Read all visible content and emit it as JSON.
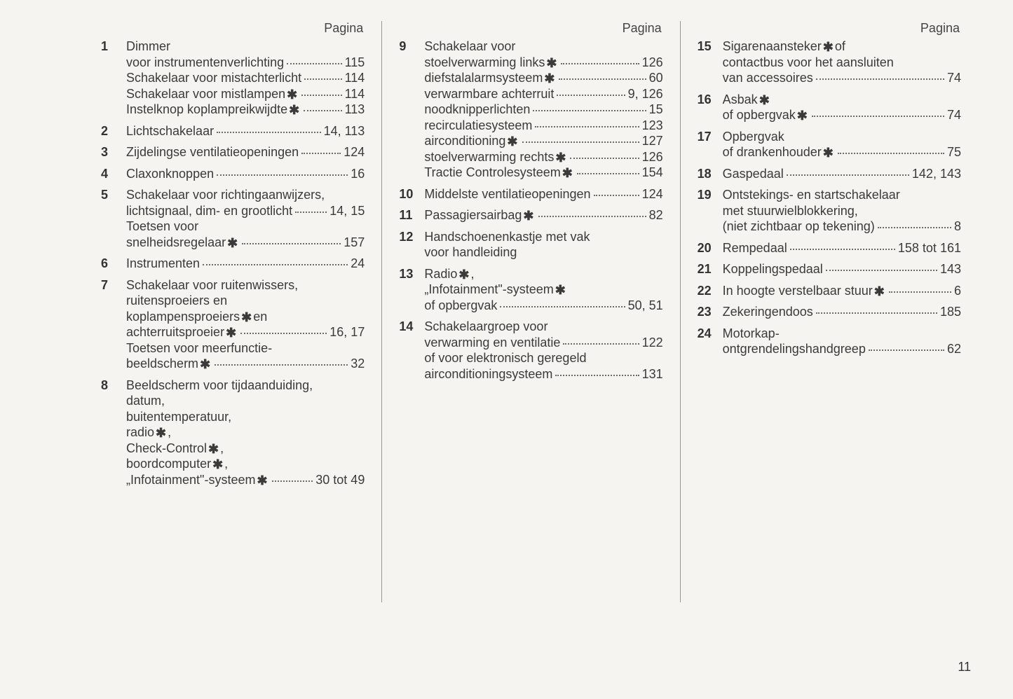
{
  "header_label": "Pagina",
  "page_number": "11",
  "columns": [
    {
      "entries": [
        {
          "num": "1",
          "lines": [
            {
              "text": "Dimmer"
            },
            {
              "text": "voor instrumentenverlichting",
              "page": "115"
            },
            {
              "text": "Schakelaar voor mistachterlicht",
              "page": "114"
            },
            {
              "text": "Schakelaar voor mistlampen",
              "star": true,
              "page": "114"
            },
            {
              "text": "Instelknop koplampreikwijdte",
              "star": true,
              "page": "113"
            }
          ]
        },
        {
          "num": "2",
          "lines": [
            {
              "text": "Lichtschakelaar",
              "page": "14, 113"
            }
          ]
        },
        {
          "num": "3",
          "lines": [
            {
              "text": "Zijdelingse ventilatieopeningen",
              "page": "124"
            }
          ]
        },
        {
          "num": "4",
          "lines": [
            {
              "text": "Claxonknoppen",
              "page": "16"
            }
          ]
        },
        {
          "num": "5",
          "lines": [
            {
              "text": "Schakelaar voor richtingaanwijzers,"
            },
            {
              "text": "lichtsignaal, dim- en grootlicht",
              "page": "14, 15"
            },
            {
              "text": "Toetsen voor"
            },
            {
              "text": "snelheidsregelaar",
              "star": true,
              "page": "157"
            }
          ]
        },
        {
          "num": "6",
          "lines": [
            {
              "text": "Instrumenten",
              "page": "24"
            }
          ]
        },
        {
          "num": "7",
          "lines": [
            {
              "text": "Schakelaar voor ruitenwissers,"
            },
            {
              "text": "ruitensproeiers en"
            },
            {
              "text": "koplampensproeiers",
              "star": true,
              "suffix": " en"
            },
            {
              "text": "achterruitsproeier",
              "star": true,
              "page": "16, 17"
            },
            {
              "text": "Toetsen voor meerfunctie-"
            },
            {
              "text": "beeldscherm",
              "star": true,
              "page": "32"
            }
          ]
        },
        {
          "num": "8",
          "lines": [
            {
              "text": "Beeldscherm voor tijdaanduiding,"
            },
            {
              "text": "datum,"
            },
            {
              "text": "buitentemperatuur,"
            },
            {
              "text": "radio",
              "star": true,
              "suffix": ","
            },
            {
              "text": "Check-Control",
              "star": true,
              "suffix": ","
            },
            {
              "text": "boordcomputer",
              "star": true,
              "suffix": ","
            },
            {
              "text": "„Infotainment\"-systeem",
              "star": true,
              "page": "30 tot 49"
            }
          ]
        }
      ]
    },
    {
      "entries": [
        {
          "num": "9",
          "lines": [
            {
              "text": "Schakelaar voor"
            },
            {
              "text": "stoelverwarming links",
              "star": true,
              "page": "126"
            },
            {
              "text": "diefstalalarmsysteem",
              "star": true,
              "page": "60"
            },
            {
              "text": "verwarmbare achterruit",
              "page": "9, 126"
            },
            {
              "text": "noodknipperlichten",
              "page": "15"
            },
            {
              "text": "recirculatiesysteem",
              "page": "123"
            },
            {
              "text": "airconditioning",
              "star": true,
              "page": "127"
            },
            {
              "text": "stoelverwarming rechts",
              "star": true,
              "page": "126"
            },
            {
              "text": "Tractie Controlesysteem",
              "star": true,
              "page": "154"
            }
          ]
        },
        {
          "num": "10",
          "lines": [
            {
              "text": "Middelste ventilatieopeningen",
              "page": "124"
            }
          ]
        },
        {
          "num": "11",
          "lines": [
            {
              "text": "Passagiersairbag",
              "star": true,
              "page": "82"
            }
          ]
        },
        {
          "num": "12",
          "lines": [
            {
              "text": "Handschoenenkastje met vak"
            },
            {
              "text": "voor handleiding"
            }
          ]
        },
        {
          "num": "13",
          "lines": [
            {
              "text": "Radio",
              "star": true,
              "suffix": ","
            },
            {
              "text": "„Infotainment\"-systeem",
              "star": true
            },
            {
              "text": "of opbergvak",
              "page": "50, 51"
            }
          ]
        },
        {
          "num": "14",
          "lines": [
            {
              "text": "Schakelaargroep voor"
            },
            {
              "text": "verwarming en ventilatie",
              "page": "122"
            },
            {
              "text": "of voor elektronisch geregeld"
            },
            {
              "text": "airconditioningsysteem",
              "page": "131"
            }
          ]
        }
      ]
    },
    {
      "entries": [
        {
          "num": "15",
          "lines": [
            {
              "text": "Sigarenaansteker",
              "star": true,
              "suffix": " of"
            },
            {
              "text": "contactbus voor het aansluiten"
            },
            {
              "text": "van accessoires",
              "page": "74"
            }
          ]
        },
        {
          "num": "16",
          "lines": [
            {
              "text": "Asbak",
              "star": true
            },
            {
              "text": "of opbergvak",
              "star": true,
              "page": "74"
            }
          ]
        },
        {
          "num": "17",
          "lines": [
            {
              "text": "Opbergvak"
            },
            {
              "text": "of drankenhouder",
              "star": true,
              "page": "75"
            }
          ]
        },
        {
          "num": "18",
          "lines": [
            {
              "text": "Gaspedaal",
              "page": "142, 143"
            }
          ]
        },
        {
          "num": "19",
          "lines": [
            {
              "text": "Ontstekings- en startschakelaar"
            },
            {
              "text": "met stuurwielblokkering,"
            },
            {
              "text": "(niet zichtbaar op tekening)",
              "page": "8"
            }
          ]
        },
        {
          "num": "20",
          "lines": [
            {
              "text": "Rempedaal",
              "page": "158 tot 161"
            }
          ]
        },
        {
          "num": "21",
          "lines": [
            {
              "text": "Koppelingspedaal",
              "page": "143"
            }
          ]
        },
        {
          "num": "22",
          "lines": [
            {
              "text": "In hoogte verstelbaar stuur",
              "star": true,
              "page": "6"
            }
          ]
        },
        {
          "num": "23",
          "lines": [
            {
              "text": "Zekeringendoos",
              "page": "185"
            }
          ]
        },
        {
          "num": "24",
          "lines": [
            {
              "text": "Motorkap-"
            },
            {
              "text": "ontgrendelingshandgreep",
              "page": "62"
            }
          ]
        }
      ]
    }
  ]
}
